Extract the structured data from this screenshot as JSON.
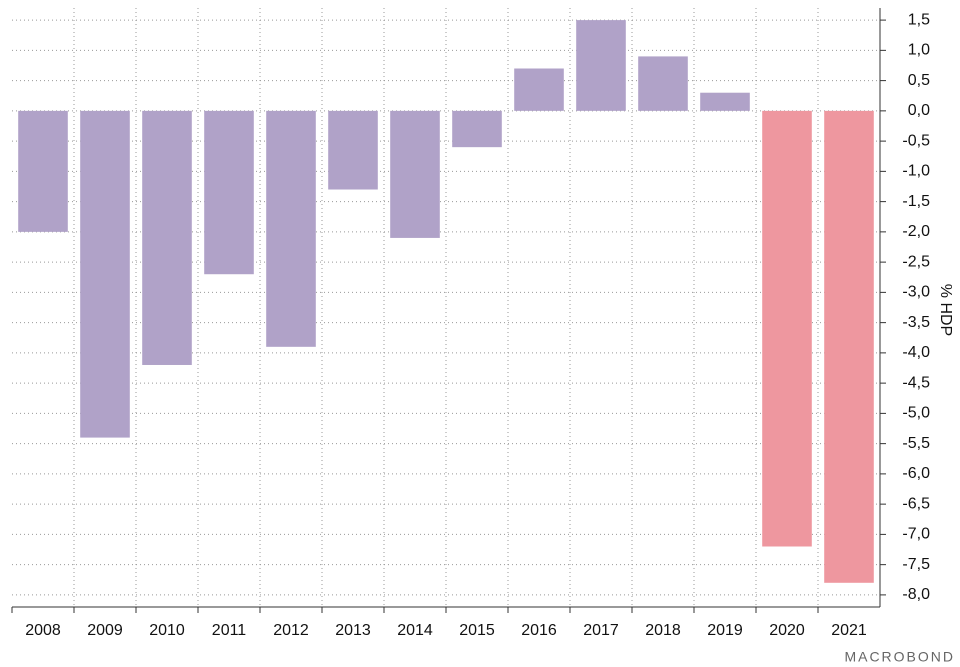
{
  "chart_data": {
    "type": "bar",
    "categories": [
      "2008",
      "2009",
      "2010",
      "2011",
      "2012",
      "2013",
      "2014",
      "2015",
      "2016",
      "2017",
      "2018",
      "2019",
      "2020",
      "2021"
    ],
    "values": [
      -2.0,
      -5.4,
      -4.2,
      -2.7,
      -3.9,
      -1.3,
      -2.1,
      -0.6,
      0.7,
      1.5,
      0.9,
      0.3,
      -7.2,
      -7.8
    ],
    "colors": [
      "#b0a2c8",
      "#b0a2c8",
      "#b0a2c8",
      "#b0a2c8",
      "#b0a2c8",
      "#b0a2c8",
      "#b0a2c8",
      "#b0a2c8",
      "#b0a2c8",
      "#b0a2c8",
      "#b0a2c8",
      "#b0a2c8",
      "#ee979f",
      "#ee979f"
    ],
    "y_axis_label": "% HDP",
    "source": "MACROBOND",
    "ylim": [
      -8.2,
      1.7
    ],
    "yticks": [
      {
        "value": 1.5,
        "label": "1,5"
      },
      {
        "value": 1.0,
        "label": "1,0"
      },
      {
        "value": 0.5,
        "label": "0,5"
      },
      {
        "value": 0,
        "label": "0,0"
      },
      {
        "value": -0.5,
        "label": "-0,5"
      },
      {
        "value": -1.0,
        "label": "-1,0"
      },
      {
        "value": -1.5,
        "label": "-1,5"
      },
      {
        "value": -2.0,
        "label": "-2,0"
      },
      {
        "value": -2.5,
        "label": "-2,5"
      },
      {
        "value": -3.0,
        "label": "-3,0"
      },
      {
        "value": -3.5,
        "label": "-3,5"
      },
      {
        "value": -4.0,
        "label": "-4,0"
      },
      {
        "value": -4.5,
        "label": "-4,5"
      },
      {
        "value": -5.0,
        "label": "-5,0"
      },
      {
        "value": -5.5,
        "label": "-5,5"
      },
      {
        "value": -6.0,
        "label": "-6,0"
      },
      {
        "value": -6.5,
        "label": "-6,5"
      },
      {
        "value": -7.0,
        "label": "-7,0"
      },
      {
        "value": -7.5,
        "label": "-7,5"
      },
      {
        "value": -8.0,
        "label": "-8,0"
      }
    ],
    "grid": true
  }
}
